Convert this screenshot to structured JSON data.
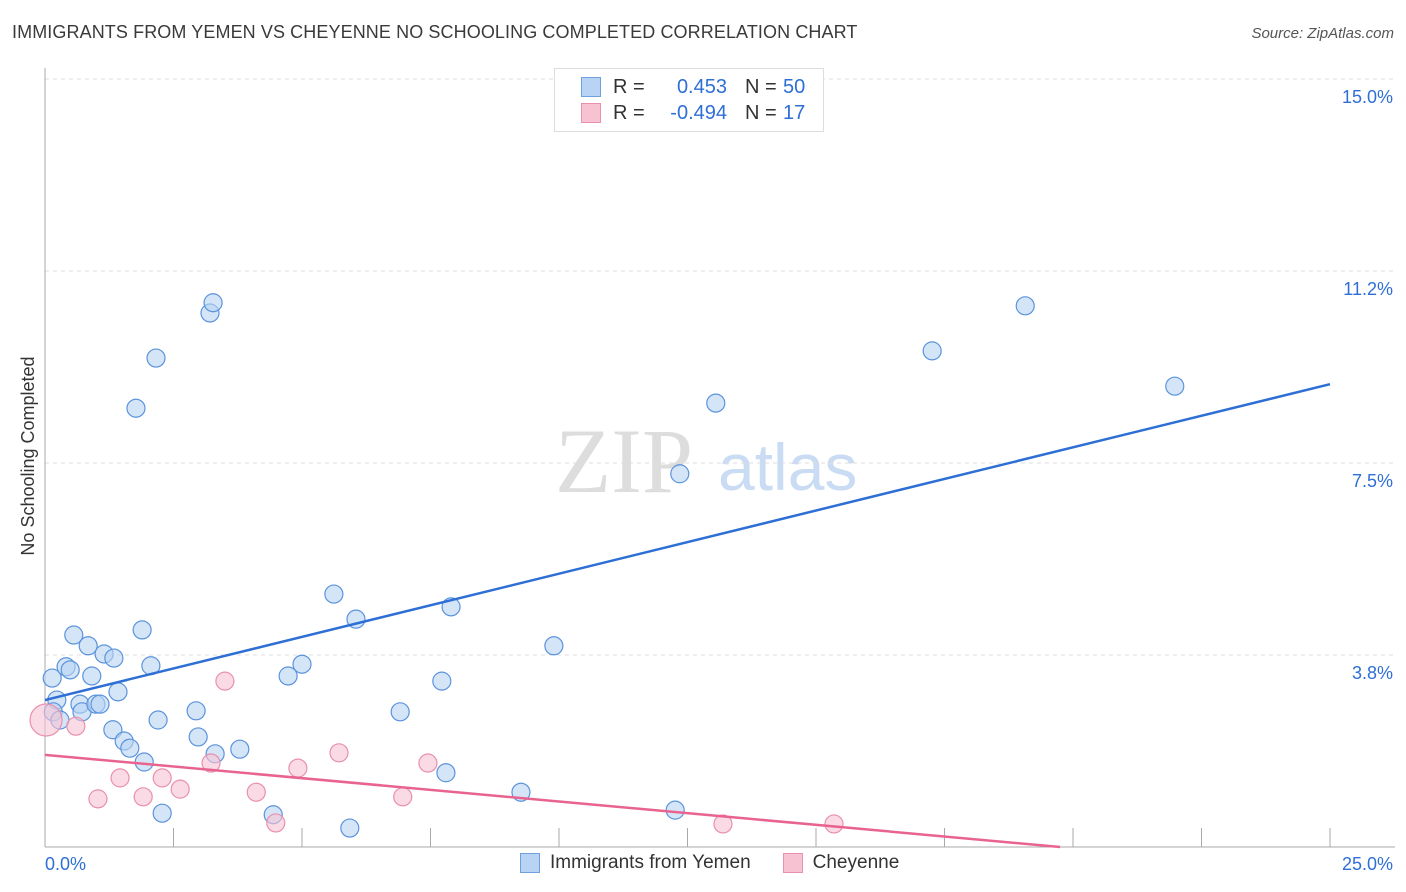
{
  "title": "IMMIGRANTS FROM YEMEN VS CHEYENNE NO SCHOOLING COMPLETED CORRELATION CHART",
  "source": "Source: ZipAtlas.com",
  "watermark": "ZIPatlas",
  "legend": {
    "rows": [
      {
        "r_label": "R =",
        "r": "0.453",
        "n_label": "N =",
        "n": "50"
      },
      {
        "r_label": "R =",
        "r": "-0.494",
        "n_label": "N =",
        "n": "17"
      }
    ]
  },
  "colors": {
    "blue": "#2e6fd6",
    "blue_fill": "#b8d3f3",
    "pink": "#e8638e",
    "pink_fill": "#f7c3d3"
  },
  "chart_data": {
    "type": "scatter",
    "title": "IMMIGRANTS FROM YEMEN VS CHEYENNE NO SCHOOLING COMPLETED CORRELATION CHART",
    "xlabel": "",
    "ylabel": "No Schooling Completed",
    "xlim": [
      0,
      25
    ],
    "ylim": [
      0,
      15
    ],
    "x_tick_labels": [
      "0.0%",
      "25.0%"
    ],
    "y_ticks": [
      3.75,
      7.5,
      11.25,
      15
    ],
    "y_tick_labels": [
      "3.8%",
      "7.5%",
      "11.2%",
      "15.0%"
    ],
    "grid": true,
    "legend_position": "bottom-center",
    "series": [
      {
        "name": "Immigrants from Yemen",
        "R": 0.453,
        "N": 50,
        "trend": [
          [
            0,
            2.87
          ],
          [
            25,
            9.04
          ]
        ],
        "points": [
          [
            0.14,
            3.3
          ],
          [
            0.23,
            2.87
          ],
          [
            0.16,
            2.64
          ],
          [
            0.29,
            2.48
          ],
          [
            0.41,
            3.52
          ],
          [
            0.49,
            3.46
          ],
          [
            0.56,
            4.14
          ],
          [
            0.68,
            2.79
          ],
          [
            0.72,
            2.64
          ],
          [
            0.84,
            3.93
          ],
          [
            0.91,
            3.34
          ],
          [
            0.99,
            2.79
          ],
          [
            1.07,
            2.79
          ],
          [
            1.15,
            3.77
          ],
          [
            1.34,
            3.69
          ],
          [
            1.42,
            3.03
          ],
          [
            1.32,
            2.29
          ],
          [
            1.54,
            2.07
          ],
          [
            1.65,
            1.93
          ],
          [
            1.89,
            4.24
          ],
          [
            1.93,
            1.66
          ],
          [
            2.06,
            3.54
          ],
          [
            2.16,
            9.55
          ],
          [
            1.77,
            8.57
          ],
          [
            2.2,
            2.48
          ],
          [
            2.28,
            0.66
          ],
          [
            2.94,
            2.66
          ],
          [
            2.98,
            2.15
          ],
          [
            3.21,
            10.43
          ],
          [
            3.27,
            10.63
          ],
          [
            3.31,
            1.82
          ],
          [
            3.79,
            1.91
          ],
          [
            4.44,
            0.63
          ],
          [
            4.73,
            3.34
          ],
          [
            5.0,
            3.57
          ],
          [
            5.62,
            4.94
          ],
          [
            5.93,
            0.37
          ],
          [
            6.05,
            4.45
          ],
          [
            6.91,
            2.64
          ],
          [
            7.72,
            3.24
          ],
          [
            7.8,
            1.45
          ],
          [
            7.9,
            4.69
          ],
          [
            9.26,
            1.07
          ],
          [
            9.9,
            3.93
          ],
          [
            12.26,
            0.72
          ],
          [
            12.35,
            7.29
          ],
          [
            13.05,
            8.67
          ],
          [
            17.26,
            9.69
          ],
          [
            19.07,
            10.57
          ],
          [
            21.98,
            9.0
          ]
        ]
      },
      {
        "name": "Cheyenne",
        "R": -0.494,
        "N": 17,
        "trend": [
          [
            0,
            1.8
          ],
          [
            19.75,
            0.0
          ]
        ],
        "points": [
          [
            0.02,
            2.48
          ],
          [
            0.6,
            2.36
          ],
          [
            1.03,
            0.94
          ],
          [
            1.46,
            1.35
          ],
          [
            1.91,
            0.98
          ],
          [
            2.28,
            1.35
          ],
          [
            2.63,
            1.13
          ],
          [
            3.23,
            1.64
          ],
          [
            3.5,
            3.24
          ],
          [
            4.11,
            1.07
          ],
          [
            4.49,
            0.47
          ],
          [
            4.92,
            1.54
          ],
          [
            5.72,
            1.84
          ],
          [
            6.96,
            0.98
          ],
          [
            7.45,
            1.64
          ],
          [
            13.19,
            0.45
          ],
          [
            15.35,
            0.45
          ]
        ]
      }
    ]
  }
}
